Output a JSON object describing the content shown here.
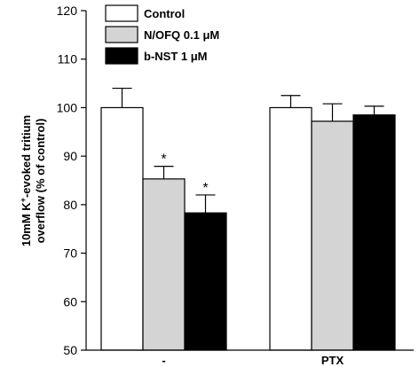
{
  "chart_data": {
    "type": "bar",
    "categories": [
      "-",
      "PTX"
    ],
    "series": [
      {
        "name": "Control",
        "color": "#ffffff",
        "values": [
          100,
          100
        ],
        "errors": [
          4,
          2.5
        ],
        "sig": [
          "",
          ""
        ]
      },
      {
        "name": "N/OFQ 0.1 μM",
        "color": "#d4d4d4",
        "values": [
          85.3,
          97.2
        ],
        "errors": [
          2.6,
          3.6
        ],
        "sig": [
          "*",
          ""
        ]
      },
      {
        "name": "b-NST 1 μM",
        "color": "#000000",
        "values": [
          78.3,
          98.5
        ],
        "errors": [
          3.7,
          1.8
        ],
        "sig": [
          "*",
          ""
        ]
      }
    ],
    "ylabel_line1": "10mM K",
    "ylabel_sup": "+",
    "ylabel_line1_rest": "-evoked tritium",
    "ylabel_line2": "overflow (% of control)",
    "ylim": [
      50,
      120
    ],
    "yticks": [
      50,
      60,
      70,
      80,
      90,
      100,
      110,
      120
    ],
    "legend_position": "top-left",
    "grid": false
  }
}
